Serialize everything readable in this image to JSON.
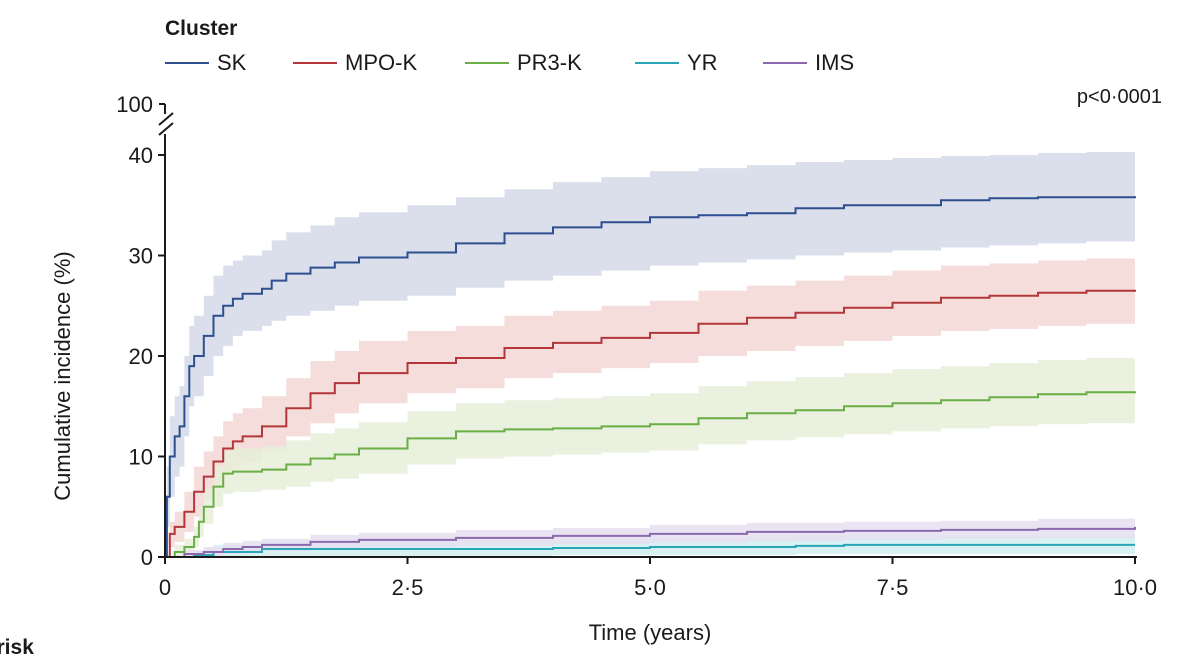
{
  "legend": {
    "title": "Cluster",
    "items": [
      {
        "label": "SK",
        "color": "#2e4f8f"
      },
      {
        "label": "MPO-K",
        "color": "#b2363a"
      },
      {
        "label": "PR3-K",
        "color": "#6aae45"
      },
      {
        "label": "YR",
        "color": "#2ba6b9"
      },
      {
        "label": "IMS",
        "color": "#8a6aad"
      }
    ]
  },
  "p_value": "p<0·0001",
  "at_risk_label": "at risk",
  "chart_data": {
    "type": "line",
    "step": true,
    "xlabel": "Time (years)",
    "ylabel": "Cumulative incidence (%)",
    "xlim": [
      0,
      10
    ],
    "ylim": [
      0,
      40
    ],
    "y_axis_break_label": "100",
    "x_ticks": [
      0,
      2.5,
      5,
      7.5,
      10
    ],
    "x_tick_labels": [
      "0",
      "2·5",
      "5·0",
      "7·5",
      "10·0"
    ],
    "y_ticks": [
      0,
      10,
      20,
      30,
      40
    ],
    "y_tick_labels": [
      "0",
      "10",
      "20",
      "30",
      "40"
    ],
    "confidence_bands": true,
    "series": [
      {
        "name": "SK",
        "color": "#2e4f8f",
        "band_color": "#d3d9e8",
        "x": [
          0,
          0.02,
          0.05,
          0.1,
          0.15,
          0.2,
          0.25,
          0.3,
          0.4,
          0.5,
          0.6,
          0.7,
          0.8,
          1.0,
          1.1,
          1.25,
          1.5,
          1.75,
          2.0,
          2.5,
          3.0,
          3.5,
          4.0,
          4.5,
          5.0,
          5.5,
          6.0,
          6.5,
          7.0,
          7.5,
          8.0,
          8.5,
          9.0,
          9.5,
          10.0
        ],
        "y": [
          0,
          6,
          10,
          12,
          13,
          16,
          19,
          20,
          22,
          24,
          25,
          25.7,
          26.2,
          26.7,
          27.5,
          28.2,
          28.8,
          29.3,
          29.8,
          30.3,
          31.2,
          32.2,
          32.8,
          33.3,
          33.8,
          34.0,
          34.2,
          34.7,
          35.0,
          35.0,
          35.5,
          35.7,
          35.8,
          35.8,
          35.9
        ],
        "lower": [
          0,
          3,
          6,
          8,
          9,
          12,
          15,
          16,
          18,
          20,
          21,
          22,
          22.5,
          23.0,
          23.5,
          24.0,
          24.5,
          25.0,
          25.5,
          26.0,
          26.8,
          27.5,
          28.0,
          28.5,
          29.0,
          29.3,
          29.6,
          30.0,
          30.3,
          30.5,
          30.8,
          31.0,
          31.2,
          31.4,
          31.5
        ],
        "upper": [
          0,
          9,
          14,
          16,
          17,
          20,
          23,
          24,
          26,
          28,
          29,
          29.5,
          30.0,
          30.5,
          31.5,
          32.3,
          33.0,
          33.8,
          34.3,
          35.0,
          35.8,
          36.6,
          37.3,
          37.8,
          38.4,
          38.7,
          39.0,
          39.3,
          39.5,
          39.7,
          39.9,
          40.0,
          40.2,
          40.3,
          40.4
        ]
      },
      {
        "name": "MPO-K",
        "color": "#b2363a",
        "band_color": "#f2d7d4",
        "x": [
          0,
          0.05,
          0.1,
          0.2,
          0.3,
          0.4,
          0.5,
          0.6,
          0.7,
          0.8,
          1.0,
          1.25,
          1.5,
          1.75,
          2.0,
          2.5,
          3.0,
          3.5,
          4.0,
          4.5,
          5.0,
          5.5,
          6.0,
          6.5,
          7.0,
          7.5,
          8.0,
          8.5,
          9.0,
          9.5,
          10.0
        ],
        "y": [
          0,
          2.3,
          3.0,
          4.5,
          6.5,
          8.0,
          9.5,
          10.8,
          11.5,
          12.0,
          13.0,
          14.8,
          16.3,
          17.3,
          18.3,
          19.3,
          19.8,
          20.8,
          21.3,
          21.8,
          22.3,
          23.2,
          23.8,
          24.3,
          24.8,
          25.3,
          25.8,
          26.0,
          26.3,
          26.5,
          26.6
        ],
        "lower": [
          0,
          1.0,
          1.5,
          2.5,
          4.0,
          5.5,
          7.0,
          8.3,
          9.0,
          9.5,
          10.5,
          12.0,
          13.3,
          14.3,
          15.3,
          16.3,
          16.8,
          17.8,
          18.3,
          18.8,
          19.3,
          20.0,
          20.5,
          21.0,
          21.5,
          22.0,
          22.5,
          22.7,
          23.0,
          23.2,
          23.3
        ],
        "upper": [
          0,
          3.5,
          4.5,
          6.5,
          9.0,
          10.5,
          12.0,
          13.5,
          14.3,
          14.8,
          16.0,
          17.8,
          19.5,
          20.5,
          21.5,
          22.5,
          23.0,
          24.0,
          24.5,
          25.0,
          25.5,
          26.5,
          27.0,
          27.5,
          28.0,
          28.5,
          29.0,
          29.2,
          29.5,
          29.7,
          29.9
        ]
      },
      {
        "name": "PR3-K",
        "color": "#6aae45",
        "band_color": "#e7efd9",
        "x": [
          0,
          0.1,
          0.2,
          0.3,
          0.35,
          0.4,
          0.5,
          0.6,
          0.7,
          1.0,
          1.25,
          1.5,
          1.75,
          2.0,
          2.5,
          3.0,
          3.5,
          4.0,
          4.5,
          5.0,
          5.5,
          6.0,
          6.5,
          7.0,
          7.5,
          8.0,
          8.5,
          9.0,
          9.5,
          10.0
        ],
        "y": [
          0,
          0.5,
          1.0,
          2.0,
          3.5,
          5.0,
          7.0,
          8.3,
          8.5,
          8.7,
          9.2,
          9.8,
          10.2,
          10.8,
          11.8,
          12.5,
          12.7,
          12.8,
          13.0,
          13.2,
          13.8,
          14.3,
          14.6,
          15.0,
          15.3,
          15.6,
          15.9,
          16.2,
          16.4,
          16.5
        ],
        "lower": [
          0,
          0,
          0.3,
          1.0,
          2.0,
          3.3,
          5.0,
          6.3,
          6.5,
          6.7,
          7.0,
          7.5,
          7.8,
          8.3,
          9.2,
          9.8,
          10.0,
          10.2,
          10.4,
          10.6,
          11.2,
          11.6,
          11.9,
          12.2,
          12.5,
          12.8,
          13.0,
          13.2,
          13.3,
          13.4
        ],
        "upper": [
          0,
          1.2,
          1.8,
          3.0,
          5.0,
          6.8,
          9.0,
          10.5,
          10.8,
          11.0,
          11.6,
          12.3,
          12.8,
          13.4,
          14.5,
          15.3,
          15.6,
          15.8,
          16.0,
          16.3,
          17.0,
          17.5,
          17.9,
          18.3,
          18.7,
          19.0,
          19.3,
          19.6,
          19.8,
          19.9
        ]
      },
      {
        "name": "YR",
        "color": "#2ba6b9",
        "band_color": "#d3eef1",
        "x": [
          0,
          0.3,
          0.5,
          1.0,
          2.0,
          3.0,
          4.0,
          5.0,
          6.0,
          6.5,
          7.0,
          8.0,
          9.0,
          10.0
        ],
        "y": [
          0,
          0.2,
          0.5,
          0.8,
          0.8,
          0.8,
          0.9,
          1.0,
          1.0,
          1.1,
          1.2,
          1.2,
          1.2,
          1.2
        ],
        "lower": [
          0,
          0,
          0,
          0.1,
          0.1,
          0.1,
          0.2,
          0.2,
          0.2,
          0.3,
          0.3,
          0.3,
          0.3,
          0.3
        ],
        "upper": [
          0,
          0.6,
          1.2,
          1.6,
          1.7,
          1.7,
          1.8,
          1.9,
          2.0,
          2.1,
          2.2,
          2.2,
          2.2,
          2.2
        ]
      },
      {
        "name": "IMS",
        "color": "#8a6aad",
        "band_color": "#e6dff0",
        "x": [
          0,
          0.2,
          0.4,
          0.6,
          0.8,
          1.0,
          1.5,
          2.0,
          3.0,
          4.0,
          5.0,
          6.0,
          7.0,
          8.0,
          9.0,
          10.0
        ],
        "y": [
          0,
          0.3,
          0.5,
          0.8,
          1.0,
          1.2,
          1.5,
          1.7,
          1.9,
          2.1,
          2.3,
          2.5,
          2.6,
          2.7,
          2.8,
          3.0
        ],
        "lower": [
          0,
          0,
          0.1,
          0.3,
          0.5,
          0.6,
          0.8,
          1.0,
          1.1,
          1.3,
          1.4,
          1.6,
          1.7,
          1.8,
          1.9,
          2.0
        ],
        "upper": [
          0,
          0.7,
          1.0,
          1.4,
          1.6,
          1.8,
          2.2,
          2.4,
          2.7,
          2.9,
          3.2,
          3.4,
          3.5,
          3.6,
          3.8,
          4.0
        ]
      }
    ]
  }
}
